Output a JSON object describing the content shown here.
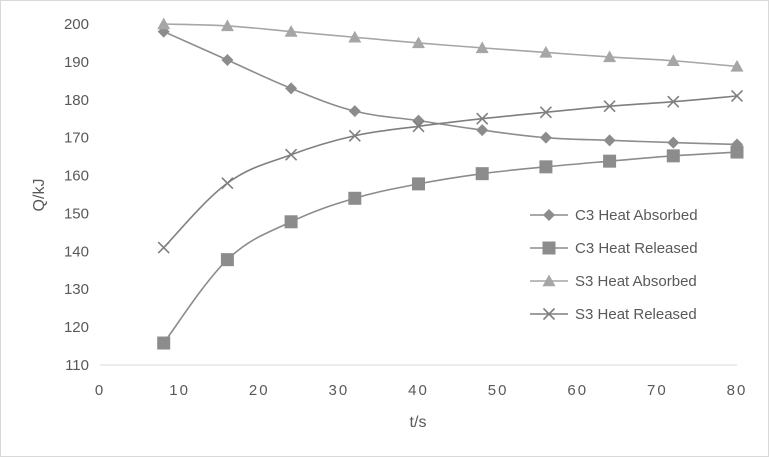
{
  "chart_data": {
    "type": "line",
    "title": "",
    "xlabel": "t/s",
    "ylabel": "Q/kJ",
    "xlim": [
      0,
      80
    ],
    "ylim": [
      110,
      200
    ],
    "x_ticks": [
      0,
      10,
      20,
      30,
      40,
      50,
      60,
      70,
      80
    ],
    "y_ticks": [
      110,
      120,
      130,
      140,
      150,
      160,
      170,
      180,
      190,
      200
    ],
    "grid": false,
    "legend_position": "right",
    "x": [
      8,
      16,
      24,
      32,
      40,
      48,
      56,
      64,
      72,
      80
    ],
    "series": [
      {
        "name": "C3 Heat Absorbed",
        "marker": "diamond",
        "color": "#8c8c8c",
        "values": [
          198,
          190.5,
          183,
          177,
          174.5,
          172,
          170,
          169.3,
          168.7,
          168.2
        ]
      },
      {
        "name": "C3 Heat Released",
        "marker": "square",
        "color": "#8c8c8c",
        "values": [
          115.8,
          137.8,
          147.8,
          154,
          157.8,
          160.5,
          162.3,
          163.8,
          165.2,
          166.2
        ]
      },
      {
        "name": "S3 Heat Absorbed",
        "marker": "triangle",
        "color": "#a6a6a6",
        "values": [
          200,
          199.5,
          198,
          196.5,
          195,
          193.7,
          192.5,
          191.3,
          190.3,
          188.8
        ]
      },
      {
        "name": "S3 Heat Released",
        "marker": "cross",
        "color": "#7f7f7f",
        "values": [
          141,
          158,
          165.5,
          170.5,
          173,
          175,
          176.7,
          178.3,
          179.5,
          181
        ]
      }
    ]
  }
}
